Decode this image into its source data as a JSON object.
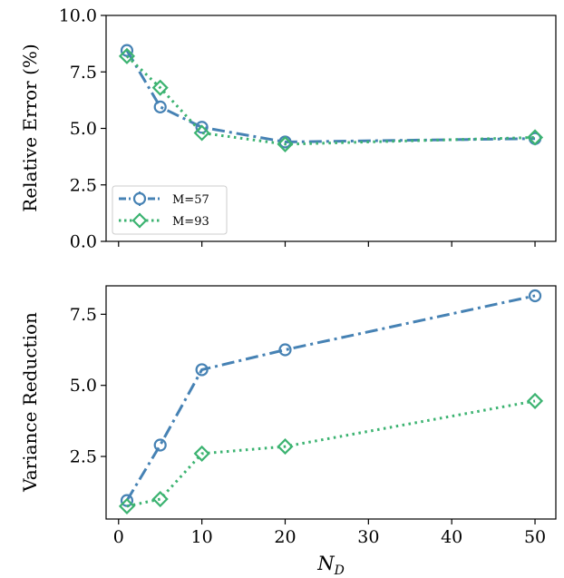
{
  "chart_data": [
    {
      "type": "line",
      "ylabel": "Relative Error (%)",
      "xlabel": "",
      "xlim": [
        -1.5,
        52.5
      ],
      "ylim": [
        0,
        10
      ],
      "x_ticks": [
        0,
        10,
        20,
        30,
        40,
        50
      ],
      "x_tick_labels_visible": false,
      "y_ticks": [
        0.0,
        2.5,
        5.0,
        7.5,
        10.0
      ],
      "y_tick_labels": [
        "0.0",
        "2.5",
        "5.0",
        "7.5",
        "10.0"
      ],
      "legend": {
        "position": "lower-left"
      },
      "series": [
        {
          "name": "M=57",
          "color": "#4682b4",
          "marker": "circle",
          "linestyle": "dashdot",
          "x": [
            1,
            5,
            10,
            20,
            50
          ],
          "y": [
            8.45,
            5.95,
            5.05,
            4.4,
            4.55
          ]
        },
        {
          "name": "M=93",
          "color": "#3cb371",
          "marker": "diamond",
          "linestyle": "dotted",
          "x": [
            1,
            5,
            10,
            20,
            50
          ],
          "y": [
            8.2,
            6.8,
            4.8,
            4.3,
            4.6
          ]
        }
      ]
    },
    {
      "type": "line",
      "ylabel": "Variance Reduction",
      "xlabel": "N_D",
      "xlabel_main": "N",
      "xlabel_sub": "D",
      "xlim": [
        -1.5,
        52.5
      ],
      "ylim": [
        0.3,
        8.5
      ],
      "x_ticks": [
        0,
        10,
        20,
        30,
        40,
        50
      ],
      "x_tick_labels": [
        "0",
        "10",
        "20",
        "30",
        "40",
        "50"
      ],
      "y_ticks": [
        2.5,
        5.0,
        7.5
      ],
      "y_tick_labels": [
        "2.5",
        "5.0",
        "7.5"
      ],
      "series": [
        {
          "name": "M=57",
          "color": "#4682b4",
          "marker": "circle",
          "linestyle": "dashdot",
          "x": [
            1,
            5,
            10,
            20,
            50
          ],
          "y": [
            0.95,
            2.9,
            5.55,
            6.25,
            8.15
          ]
        },
        {
          "name": "M=93",
          "color": "#3cb371",
          "marker": "diamond",
          "linestyle": "dotted",
          "x": [
            1,
            5,
            10,
            20,
            50
          ],
          "y": [
            0.75,
            1.0,
            2.6,
            2.85,
            4.45
          ]
        }
      ]
    }
  ]
}
